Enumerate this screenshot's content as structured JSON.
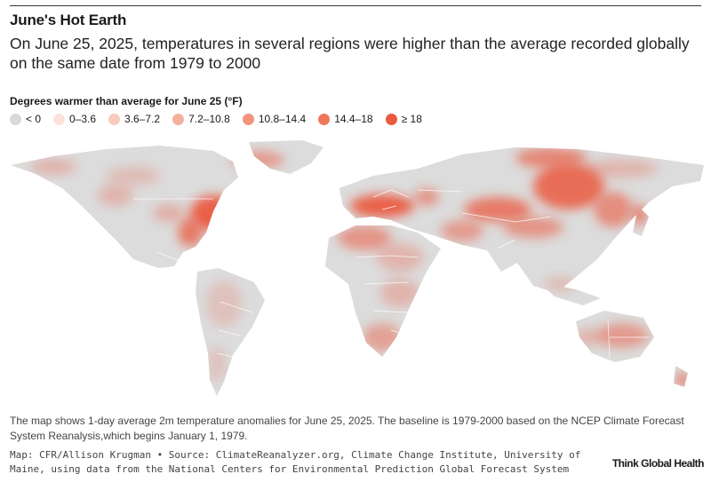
{
  "header": {
    "title": "June's Hot Earth",
    "subtitle": "On June 25, 2025, temperatures in several regions were higher than the average recorded globally on the same date from 1979 to 2000"
  },
  "legend": {
    "title": "Degrees warmer than average for June 25 (°F)",
    "items": [
      {
        "label": "< 0",
        "color": "#d9d9d9"
      },
      {
        "label": "0–3.6",
        "color": "#fbe3dc"
      },
      {
        "label": "3.6–7.2",
        "color": "#f8cbbd"
      },
      {
        "label": "7.2–10.8",
        "color": "#f5b09c"
      },
      {
        "label": "10.8–14.4",
        "color": "#f2937b"
      },
      {
        "label": "14.4–18",
        "color": "#ef775b"
      },
      {
        "label": "≥ 18",
        "color": "#ea5a3f"
      }
    ]
  },
  "colors": {
    "land": "#dcdcdc",
    "border": "#ffffff",
    "hot": "#ea5a3f"
  },
  "footer": {
    "note": "The map shows 1-day average 2m temperature anomalies for June 25, 2025. The baseline is 1979-2000 based on the NCEP Climate Forecast System Reanalysis,which begins January 1, 1979.",
    "source": "Map: CFR/Allison Krugman • Source: ClimateReanalyzer.org, Climate Change Institute, University of Maine, using data from the National Centers for Environmental Prediction Global Forecast System",
    "brand": "Think Global Health"
  }
}
